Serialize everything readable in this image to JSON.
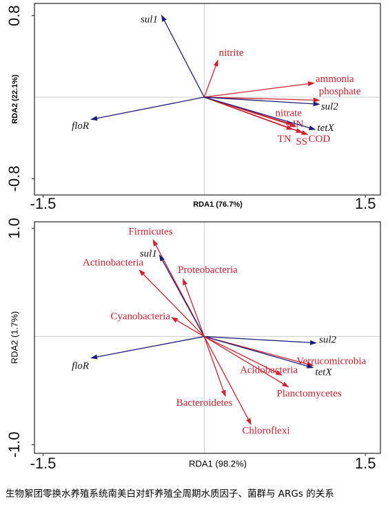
{
  "chart_data": [
    {
      "type": "biplot",
      "xlabel": "RDA1 (76.7%)",
      "ylabel": "RDA2 (22.1%)",
      "xlim": [
        -1.58,
        1.64
      ],
      "xticks": [
        -1.5,
        1.5
      ],
      "ylim": [
        -0.96,
        0.92
      ],
      "yticks": [
        -0.8,
        0.8
      ],
      "vectors": [
        {
          "name": "sul1",
          "color": "#1c1c78",
          "x": -0.4,
          "y": 0.81
        },
        {
          "name": "nitrite",
          "color": "#d0202f",
          "x": 0.13,
          "y": 0.37
        },
        {
          "name": "ammonia",
          "color": "#d0202f",
          "x": 1.03,
          "y": 0.14
        },
        {
          "name": "phosphate",
          "color": "#d0202f",
          "x": 1.08,
          "y": -0.03
        },
        {
          "name": "sul2",
          "color": "#1c1c78",
          "x": 1.08,
          "y": -0.07
        },
        {
          "name": "floR",
          "color": "#1c1c78",
          "x": -1.06,
          "y": -0.22
        },
        {
          "name": "nitrate",
          "color": "#d0202f",
          "x": 0.83,
          "y": -0.27
        },
        {
          "name": "IN",
          "color": "#d0202f",
          "x": 0.86,
          "y": -0.29
        },
        {
          "name": "TN",
          "color": "#d0202f",
          "x": 0.83,
          "y": -0.32
        },
        {
          "name": "SS",
          "color": "#d0202f",
          "x": 0.92,
          "y": -0.35
        },
        {
          "name": "COD",
          "color": "#d0202f",
          "x": 0.97,
          "y": -0.37
        },
        {
          "name": "tetX",
          "color": "#1c1c78",
          "x": 1.04,
          "y": -0.32
        }
      ]
    },
    {
      "type": "biplot",
      "xlabel": "RDA1 (98.2%)",
      "ylabel": "RDA2 (1.7%)",
      "xlim": [
        -1.58,
        1.64
      ],
      "xticks": [
        -1.5,
        1.5
      ],
      "ylim": [
        -1.08,
        1.06
      ],
      "yticks": [
        {
          "value": -1,
          "label": "-1.0"
        },
        {
          "value": 1,
          "label": "1.0"
        }
      ],
      "vectors": [
        {
          "name": "Firmicutes",
          "color": "#d0202f",
          "x": -0.48,
          "y": 0.9
        },
        {
          "name": "sul1",
          "color": "#1c1c78",
          "x": -0.42,
          "y": 0.76
        },
        {
          "name": "Actinobacteria",
          "color": "#d0202f",
          "x": -0.61,
          "y": 0.62
        },
        {
          "name": "Proteobacteria",
          "color": "#d0202f",
          "x": -0.2,
          "y": 0.54
        },
        {
          "name": "Cyanobacteria",
          "color": "#d0202f",
          "x": -0.31,
          "y": 0.18
        },
        {
          "name": "sul2",
          "color": "#1c1c78",
          "x": 1.05,
          "y": -0.06
        },
        {
          "name": "floR",
          "color": "#1c1c78",
          "x": -1.06,
          "y": -0.2
        },
        {
          "name": "Verrucomicrobia",
          "color": "#d0202f",
          "x": 1.02,
          "y": -0.27
        },
        {
          "name": "tetX",
          "color": "#1c1c78",
          "x": 1.02,
          "y": -0.29
        },
        {
          "name": "Acidobacteria",
          "color": "#d0202f",
          "x": 0.73,
          "y": -0.36
        },
        {
          "name": "Planctomycetes",
          "color": "#d0202f",
          "x": 0.79,
          "y": -0.47
        },
        {
          "name": "Bacteroidetes",
          "color": "#d0202f",
          "x": 0.2,
          "y": -0.56
        },
        {
          "name": "Chloroflexi",
          "color": "#d0202f",
          "x": 0.44,
          "y": -0.82
        }
      ]
    }
  ],
  "caption": "生物絮团零换水养殖系统南美白对虾养殖全周期水质因子、菌群与 ARGs 的关系"
}
